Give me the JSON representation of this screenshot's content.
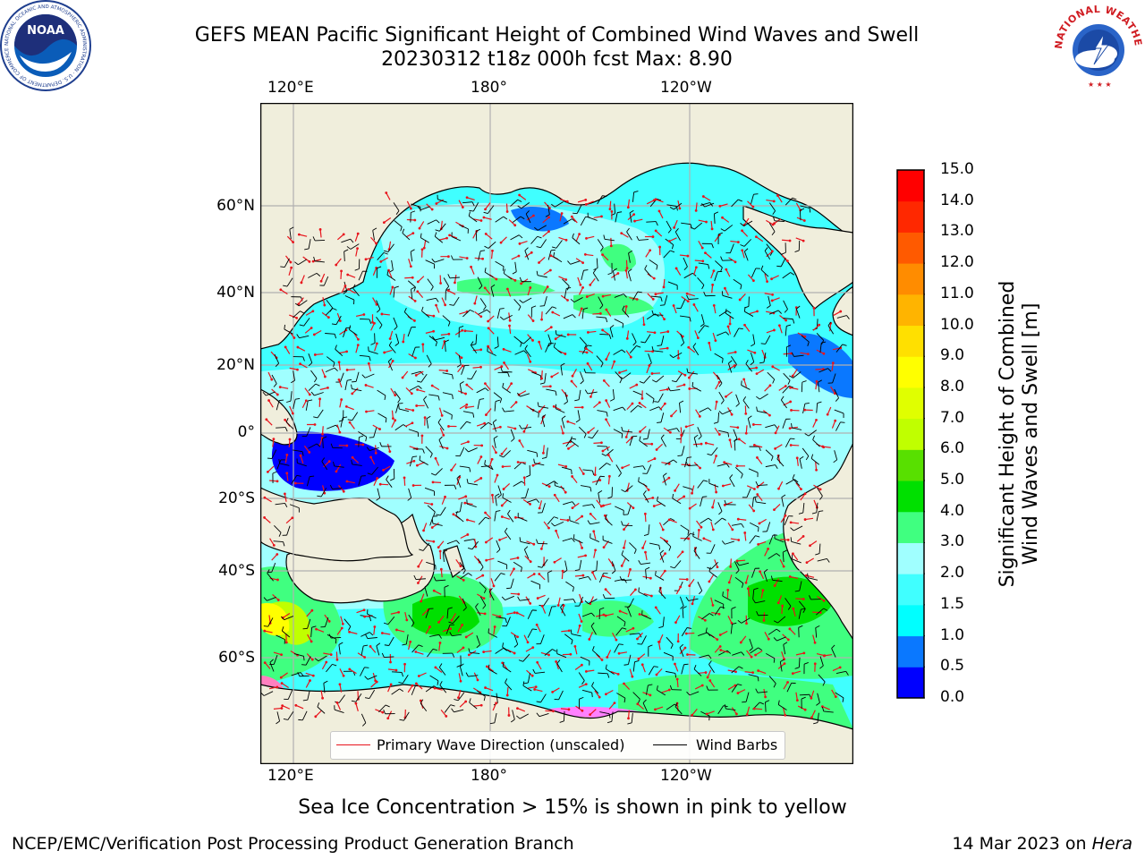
{
  "title": {
    "line1": "GEFS MEAN Pacific Significant Height of Combined Wind Waves and Swell",
    "line2": "20230312 t18z 000h fcst   Max: 8.90"
  },
  "logos": {
    "noaa": {
      "center_text": "NOAA",
      "ring_text": "NATIONAL OCEANIC AND ATMOSPHERIC ADMINISTRATION · U.S. DEPARTMENT OF COMMERCE"
    },
    "nws": {
      "ring_text": "NATIONAL WEATHER SERVICE"
    }
  },
  "map": {
    "lon_labels": [
      "120°E",
      "180°",
      "120°W"
    ],
    "lat_labels": [
      "60°N",
      "40°N",
      "20°N",
      "0°",
      "20°S",
      "40°S",
      "60°S"
    ],
    "colors": {
      "land": "#f0eedc",
      "coast": "#000000",
      "grid": "#b0b0b0",
      "wave_direction": "#e8141c",
      "wind_barb": "#000000"
    }
  },
  "legend": {
    "wave_direction": "Primary Wave Direction (unscaled)",
    "wind_barbs": "Wind Barbs"
  },
  "colorbar": {
    "label_line1": "Significant Height of Combined",
    "label_line2": "Wind Waves and Swell [m]",
    "ticks": [
      "0.0",
      "0.5",
      "1.0",
      "1.5",
      "2.0",
      "3.0",
      "4.0",
      "5.0",
      "6.0",
      "7.0",
      "8.0",
      "9.0",
      "10.0",
      "11.0",
      "12.0",
      "13.0",
      "14.0",
      "15.0"
    ],
    "colors": [
      "#0000ff",
      "#0a78ff",
      "#00ffff",
      "#40ffff",
      "#a0ffff",
      "#40ff80",
      "#00e000",
      "#58e000",
      "#c0ff00",
      "#e0ff00",
      "#ffff00",
      "#ffe000",
      "#ffb400",
      "#ff8c00",
      "#ff5a00",
      "#ff2800",
      "#ff0000"
    ]
  },
  "note": "Sea Ice Concentration > 15% is shown in pink to yellow",
  "footer": {
    "left": "NCEP/EMC/Verification Post Processing Product Generation Branch",
    "date": "14 Mar 2023 on ",
    "machine": "Hera"
  }
}
